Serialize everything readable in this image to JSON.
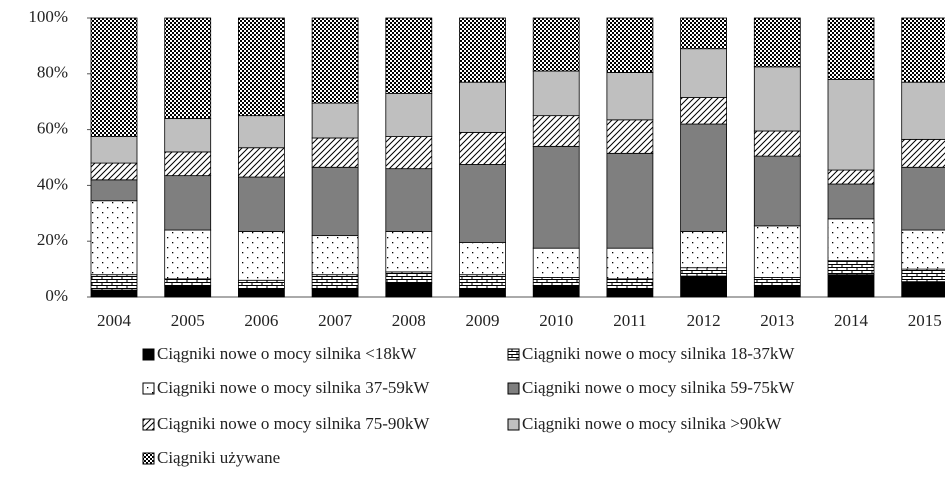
{
  "chart_data": {
    "type": "stacked_bar_percent",
    "categories": [
      "2004",
      "2005",
      "2006",
      "2007",
      "2008",
      "2009",
      "2010",
      "2011",
      "2012",
      "2013",
      "2014",
      "2015"
    ],
    "ylim": [
      0,
      100
    ],
    "yticks": [
      {
        "value": 0,
        "label": "0%"
      },
      {
        "value": 20,
        "label": "20%"
      },
      {
        "value": 40,
        "label": "40%"
      },
      {
        "value": 60,
        "label": "60%"
      },
      {
        "value": 80,
        "label": "80%"
      },
      {
        "value": 100,
        "label": "100%"
      }
    ],
    "series": [
      {
        "name": "Ciągniki nowe o mocy silnika <18kW",
        "color": "#000000",
        "values": [
          2.5,
          4,
          3,
          3,
          5,
          3,
          4,
          3,
          7.5,
          4,
          8,
          5.5
        ]
      },
      {
        "name": "Ciągniki nowe o mocy silnika 18-37kW",
        "color": "#ffffff",
        "values": [
          5.5,
          2.5,
          3,
          5,
          4,
          5,
          3,
          3.5,
          3,
          3,
          5,
          4.5
        ]
      },
      {
        "name": "Ciągniki nowe o mocy silnika 37-59kW",
        "color": "#ffffff",
        "values": [
          26.5,
          17.5,
          17.5,
          14,
          14.5,
          11.5,
          10.5,
          11,
          13,
          18.5,
          15,
          14
        ]
      },
      {
        "name": "Ciągniki nowe o mocy silnika 59-75kW",
        "color": "#7f7f7f",
        "values": [
          7.5,
          19.5,
          19.5,
          24.5,
          22.5,
          28,
          36.5,
          34,
          38.5,
          25,
          12.5,
          22.5
        ]
      },
      {
        "name": "Ciągniki nowe o mocy silnika 75-90kW",
        "color": "#ffffff",
        "values": [
          6,
          8.5,
          10.5,
          10.5,
          11.5,
          11.5,
          11,
          12,
          9.5,
          9,
          5,
          10
        ]
      },
      {
        "name": "Ciągniki nowe o mocy silnika >90kW",
        "color": "#bfbfbf",
        "values": [
          9.5,
          12,
          11.5,
          12.5,
          15.5,
          18,
          16,
          17,
          17.5,
          23,
          32.5,
          20.5
        ]
      },
      {
        "name": "Ciągniki używane",
        "color": "#ffffff",
        "values": [
          42.5,
          36,
          35,
          30.5,
          27,
          23,
          19,
          19.5,
          11,
          17.5,
          22,
          23
        ]
      }
    ]
  }
}
